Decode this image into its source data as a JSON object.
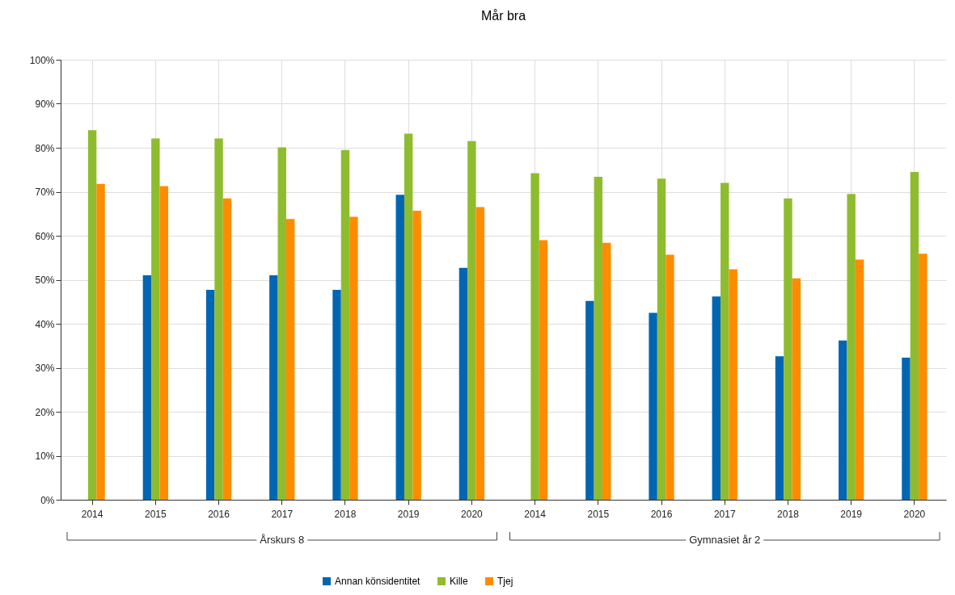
{
  "chart_data": {
    "type": "bar",
    "title": "Mår bra",
    "categories": [
      "2014",
      "2015",
      "2016",
      "2017",
      "2018",
      "2019",
      "2020",
      "2014",
      "2015",
      "2016",
      "2017",
      "2018",
      "2019",
      "2020"
    ],
    "series": [
      {
        "name": "Annan könsidentitet",
        "color": "#0066b3",
        "values": [
          null,
          51.0,
          47.7,
          51.0,
          47.7,
          69.3,
          52.7,
          null,
          45.2,
          42.5,
          46.2,
          32.6,
          36.2,
          32.3
        ]
      },
      {
        "name": "Kille",
        "color": "#8fbc2f",
        "values": [
          84.0,
          82.1,
          82.1,
          80.1,
          79.5,
          83.2,
          81.5,
          74.2,
          73.4,
          73.0,
          72.0,
          68.5,
          69.5,
          74.5
        ]
      },
      {
        "name": "Tjej",
        "color": "#ff8c00",
        "values": [
          71.8,
          71.3,
          68.5,
          63.8,
          64.3,
          65.7,
          66.5,
          59.0,
          58.4,
          55.7,
          52.4,
          50.3,
          54.6,
          55.9
        ]
      }
    ],
    "ylim": [
      0,
      100
    ],
    "yticks": [
      {
        "value": 0,
        "label": "0%"
      },
      {
        "value": 10,
        "label": "10%"
      },
      {
        "value": 20,
        "label": "20%"
      },
      {
        "value": 30,
        "label": "30%"
      },
      {
        "value": 40,
        "label": "40%"
      },
      {
        "value": 50,
        "label": "50%"
      },
      {
        "value": 60,
        "label": "60%"
      },
      {
        "value": 70,
        "label": "70%"
      },
      {
        "value": 80,
        "label": "80%"
      },
      {
        "value": 90,
        "label": "90%"
      },
      {
        "value": 100,
        "label": "100%"
      }
    ],
    "annotations": [
      "Årskurs 8",
      "Gymnasiet år 2"
    ],
    "grid": true,
    "legend": "bottom"
  }
}
